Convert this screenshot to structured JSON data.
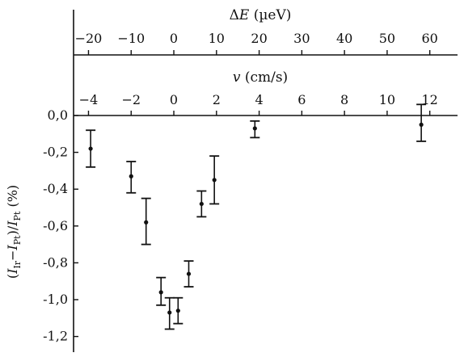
{
  "chart_data": {
    "type": "scatter",
    "title": "",
    "top_axis": {
      "label": "ΔE (µeV)",
      "ticks": [
        -20,
        -10,
        0,
        10,
        20,
        30,
        40,
        50,
        60
      ]
    },
    "mid_axis": {
      "label": "v (cm/s)",
      "ticks": [
        -4,
        -2,
        0,
        2,
        4,
        6,
        8,
        10,
        12
      ]
    },
    "y_axis": {
      "label": "(I_Ir − I_Pt)/I_Pt (%)",
      "ticks": [
        "0,0",
        "-0,2",
        "-0,4",
        "-0,6",
        "-0,8",
        "-1,0",
        "-1,2"
      ],
      "tick_values": [
        0.0,
        -0.2,
        -0.4,
        -0.6,
        -0.8,
        -1.0,
        -1.2
      ],
      "ylim": [
        -1.25,
        0.0
      ]
    },
    "xlim_v": [
      -4.7,
      13.3
    ],
    "grid": false,
    "points": [
      {
        "x": -3.9,
        "y": -0.18,
        "err_lo": -0.28,
        "err_hi": -0.08
      },
      {
        "x": -2.0,
        "y": -0.33,
        "err_lo": -0.42,
        "err_hi": -0.25
      },
      {
        "x": -1.3,
        "y": -0.58,
        "err_lo": -0.7,
        "err_hi": -0.45
      },
      {
        "x": -0.6,
        "y": -0.96,
        "err_lo": -1.03,
        "err_hi": -0.88
      },
      {
        "x": -0.2,
        "y": -1.07,
        "err_lo": -1.16,
        "err_hi": -0.99
      },
      {
        "x": 0.2,
        "y": -1.06,
        "err_lo": -1.13,
        "err_hi": -0.99
      },
      {
        "x": 0.7,
        "y": -0.86,
        "err_lo": -0.93,
        "err_hi": -0.79
      },
      {
        "x": 1.3,
        "y": -0.48,
        "err_lo": -0.55,
        "err_hi": -0.41
      },
      {
        "x": 1.9,
        "y": -0.35,
        "err_lo": -0.48,
        "err_hi": -0.22
      },
      {
        "x": 3.8,
        "y": -0.07,
        "err_lo": -0.12,
        "err_hi": -0.03
      },
      {
        "x": 11.6,
        "y": -0.05,
        "err_lo": -0.14,
        "err_hi": 0.06
      }
    ]
  }
}
